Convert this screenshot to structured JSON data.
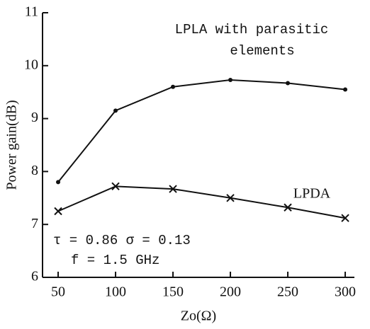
{
  "chart_data": {
    "type": "line",
    "x_label": "Zo(Ω)",
    "y_label": "Power gain(dB)",
    "x": [
      50,
      100,
      150,
      200,
      250,
      300
    ],
    "series": [
      {
        "name": "LPLA with parasitic elements",
        "color": "#111111",
        "marker": "dot",
        "values": [
          7.8,
          9.15,
          9.6,
          9.73,
          9.67,
          9.55
        ]
      },
      {
        "name": "LPDA",
        "color": "#111111",
        "marker": "x",
        "values": [
          7.25,
          7.72,
          7.67,
          7.5,
          7.32,
          7.12
        ]
      }
    ],
    "annotations": [
      "τ = 0.86 σ = 0.13",
      "f = 1.5 GHz"
    ],
    "xlim": [
      36.4,
      308
    ],
    "ylim": [
      6,
      11
    ],
    "xticks": [
      50,
      100,
      150,
      200,
      250,
      300
    ],
    "yticks": [
      6,
      7,
      8,
      9,
      10,
      11
    ]
  }
}
